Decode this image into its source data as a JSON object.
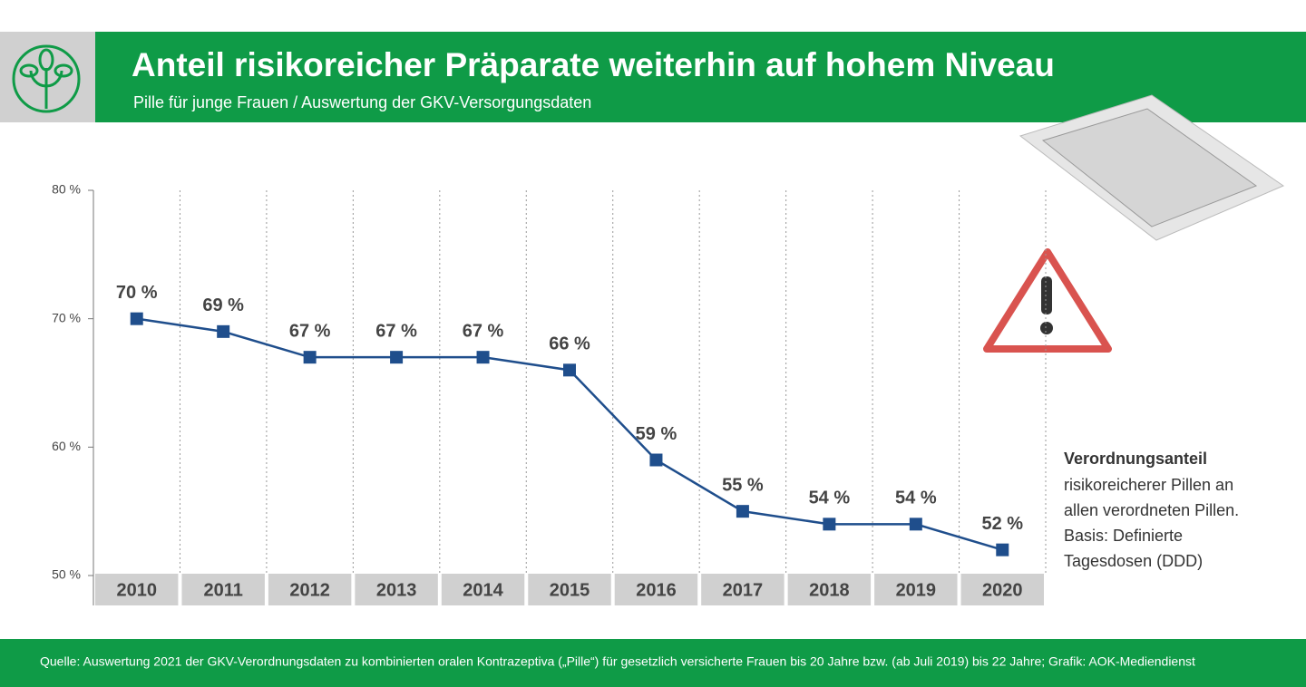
{
  "chart_data": {
    "type": "line",
    "title": "Anteil risikoreicher Präparate weiterhin auf hohem Niveau",
    "subtitle": "Pille für junge Frauen / Auswertung der GKV-Versorgungsdaten",
    "categories": [
      "2010",
      "2011",
      "2012",
      "2013",
      "2014",
      "2015",
      "2016",
      "2017",
      "2018",
      "2019",
      "2020"
    ],
    "values": [
      70,
      69,
      67,
      67,
      67,
      66,
      59,
      55,
      54,
      54,
      52
    ],
    "value_labels": [
      "70 %",
      "69 %",
      "67 %",
      "67 %",
      "67 %",
      "66 %",
      "59 %",
      "55 %",
      "54 %",
      "54 %",
      "52 %"
    ],
    "color": "#1f4e8c",
    "ylim": [
      50,
      80
    ],
    "yticks": [
      {
        "value": 50,
        "label": "50 %"
      },
      {
        "value": 60,
        "label": "60 %"
      },
      {
        "value": 70,
        "label": "70 %"
      },
      {
        "value": 80,
        "label": "80 %"
      }
    ],
    "note_title": "Verordnungsanteil",
    "note_lines": [
      "risikoreicherer Pillen an",
      "allen verordneten Pillen.",
      "Basis: Definierte",
      "Tagesdosen (DDD)"
    ],
    "source": "Quelle: Auswertung 2021 der GKV-Verordnungsdaten zu kombinierten oralen Kontrazeptiva („Pille“) für gesetzlich versicherte Frauen bis 20 Jahre bzw. (ab Juli 2019) bis 22 Jahre; Grafik: AOK-Mediendienst"
  }
}
